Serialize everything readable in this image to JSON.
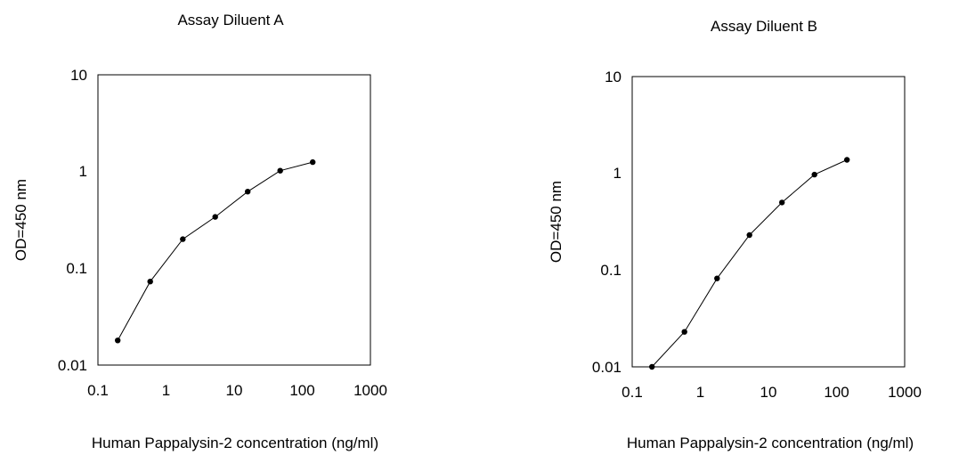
{
  "chart_data": [
    {
      "type": "line",
      "title": "Assay Diluent A",
      "xlabel": "Human Pappalysin-2 concentration (ng/ml)",
      "ylabel": "OD=450 nm",
      "xscale": "log",
      "yscale": "log",
      "xlim": [
        0.1,
        1000
      ],
      "ylim": [
        0.01,
        10
      ],
      "xticks": [
        "0.1",
        "1",
        "10",
        "100",
        "1000"
      ],
      "yticks": [
        "0.01",
        "0.1",
        "1",
        "10"
      ],
      "grid": false,
      "series": [
        {
          "x": [
            0.195,
            0.586,
            1.76,
            5.27,
            15.8,
            47.4,
            142
          ],
          "y": [
            0.018,
            0.073,
            0.2,
            0.34,
            0.62,
            1.02,
            1.25
          ]
        }
      ]
    },
    {
      "type": "line",
      "title": "Assay Diluent B",
      "xlabel": "Human Pappalysin-2 concentration (ng/ml)",
      "ylabel": "OD=450 nm",
      "xscale": "log",
      "yscale": "log",
      "xlim": [
        0.1,
        1000
      ],
      "ylim": [
        0.01,
        10
      ],
      "xticks": [
        "0.1",
        "1",
        "10",
        "100",
        "1000"
      ],
      "yticks": [
        "0.01",
        "0.1",
        "1",
        "10"
      ],
      "grid": false,
      "series": [
        {
          "x": [
            0.195,
            0.586,
            1.76,
            5.27,
            15.8,
            47.4,
            142
          ],
          "y": [
            0.01,
            0.023,
            0.082,
            0.23,
            0.5,
            0.97,
            1.38
          ]
        }
      ]
    }
  ]
}
